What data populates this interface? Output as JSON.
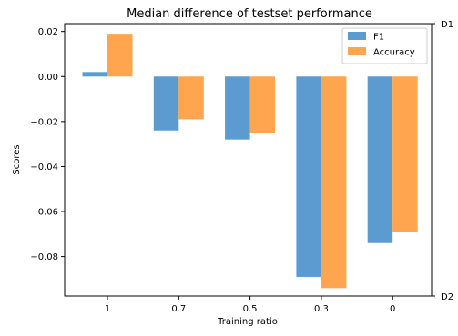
{
  "chart_data": {
    "type": "bar",
    "title": "Median difference of testset performance",
    "xlabel": "Training ratio",
    "ylabel": "Scores",
    "categories": [
      "1",
      "0.7",
      "0.5",
      "0.3",
      "0"
    ],
    "series": [
      {
        "name": "F1",
        "values": [
          0.002,
          -0.024,
          -0.028,
          -0.089,
          -0.074
        ],
        "color": "#5b9bd0"
      },
      {
        "name": "Accuracy",
        "values": [
          0.019,
          -0.019,
          -0.025,
          -0.094,
          -0.069
        ],
        "color": "#ffa44f"
      }
    ],
    "ylim": [
      -0.0975,
      0.0235
    ],
    "yticks": [
      0.02,
      0.0,
      -0.02,
      -0.04,
      -0.06,
      -0.08
    ],
    "ytick_labels": [
      "0.02",
      "0.00",
      "−0.02",
      "−0.04",
      "−0.06",
      "−0.08"
    ],
    "secondary_axis_labels": {
      "top": "D1",
      "bottom": "D2"
    },
    "legend_position": "top-right",
    "grid": false
  }
}
